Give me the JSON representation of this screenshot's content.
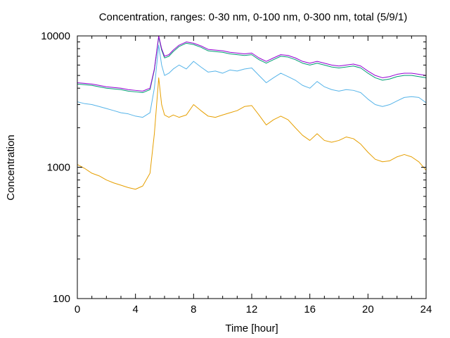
{
  "chart_data": {
    "type": "line",
    "title": "Concentration, ranges: 0-30 nm, 0-100 nm, 0-300 nm, total (5/9/1)",
    "xlabel": "Time [hour]",
    "ylabel": "Concentration",
    "xlim": [
      0,
      24
    ],
    "ylim": [
      100,
      10000
    ],
    "yscale": "log",
    "grid": false,
    "x_ticks": [
      "0",
      "4",
      "8",
      "12",
      "16",
      "20",
      "24"
    ],
    "y_ticks": [
      "100",
      "1000",
      "10000"
    ],
    "colors": {
      "series_0_30": "#e69f00",
      "series_0_100": "#56b4e9",
      "series_0_300": "#009e73",
      "series_total": "#9400d3"
    },
    "x": [
      0,
      0.5,
      1,
      1.5,
      2,
      2.5,
      3,
      3.5,
      4,
      4.5,
      5,
      5.3,
      5.6,
      5.8,
      6,
      6.3,
      6.6,
      7,
      7.5,
      8,
      8.5,
      9,
      9.5,
      10,
      10.5,
      11,
      11.5,
      12,
      12.5,
      13,
      13.5,
      14,
      14.5,
      15,
      15.5,
      16,
      16.5,
      17,
      17.5,
      18,
      18.5,
      19,
      19.5,
      20,
      20.5,
      21,
      21.5,
      22,
      22.5,
      23,
      23.5,
      24
    ],
    "series": [
      {
        "values": [
          1050,
          980,
          900,
          860,
          800,
          760,
          730,
          700,
          680,
          720,
          900,
          1800,
          4800,
          3000,
          2500,
          2400,
          2500,
          2400,
          2500,
          3000,
          2700,
          2450,
          2400,
          2500,
          2600,
          2700,
          2900,
          2950,
          2500,
          2100,
          2300,
          2450,
          2300,
          2000,
          1750,
          1600,
          1800,
          1600,
          1550,
          1600,
          1700,
          1650,
          1500,
          1300,
          1150,
          1100,
          1120,
          1200,
          1250,
          1200,
          1100,
          950
        ]
      },
      {
        "values": [
          3150,
          3050,
          3000,
          2900,
          2800,
          2700,
          2600,
          2550,
          2450,
          2400,
          2600,
          4000,
          8500,
          6000,
          5000,
          5200,
          5600,
          6000,
          5600,
          6400,
          5800,
          5300,
          5400,
          5200,
          5500,
          5400,
          5600,
          5700,
          5000,
          4400,
          4800,
          5200,
          4900,
          4600,
          4200,
          4000,
          4500,
          4100,
          3900,
          3800,
          3900,
          3850,
          3700,
          3300,
          3000,
          2900,
          3000,
          3200,
          3400,
          3450,
          3400,
          3100
        ]
      },
      {
        "values": [
          4300,
          4250,
          4200,
          4100,
          4000,
          3950,
          3900,
          3800,
          3750,
          3700,
          3900,
          5500,
          9800,
          7800,
          6800,
          7000,
          7600,
          8300,
          8800,
          8600,
          8200,
          7700,
          7600,
          7500,
          7300,
          7200,
          7100,
          7200,
          6600,
          6200,
          6600,
          7000,
          6900,
          6600,
          6200,
          6000,
          6200,
          6000,
          5800,
          5700,
          5800,
          5900,
          5700,
          5200,
          4800,
          4600,
          4700,
          4900,
          5000,
          5000,
          4900,
          4800
        ]
      },
      {
        "values": [
          4400,
          4350,
          4300,
          4200,
          4100,
          4050,
          4000,
          3900,
          3850,
          3800,
          4000,
          5600,
          10000,
          8000,
          7000,
          7200,
          7800,
          8500,
          9000,
          8800,
          8400,
          7900,
          7800,
          7700,
          7500,
          7400,
          7300,
          7400,
          6800,
          6400,
          6800,
          7200,
          7100,
          6800,
          6400,
          6200,
          6400,
          6200,
          6000,
          5900,
          6000,
          6100,
          5900,
          5400,
          5000,
          4800,
          4900,
          5100,
          5200,
          5200,
          5100,
          5000
        ]
      }
    ]
  }
}
